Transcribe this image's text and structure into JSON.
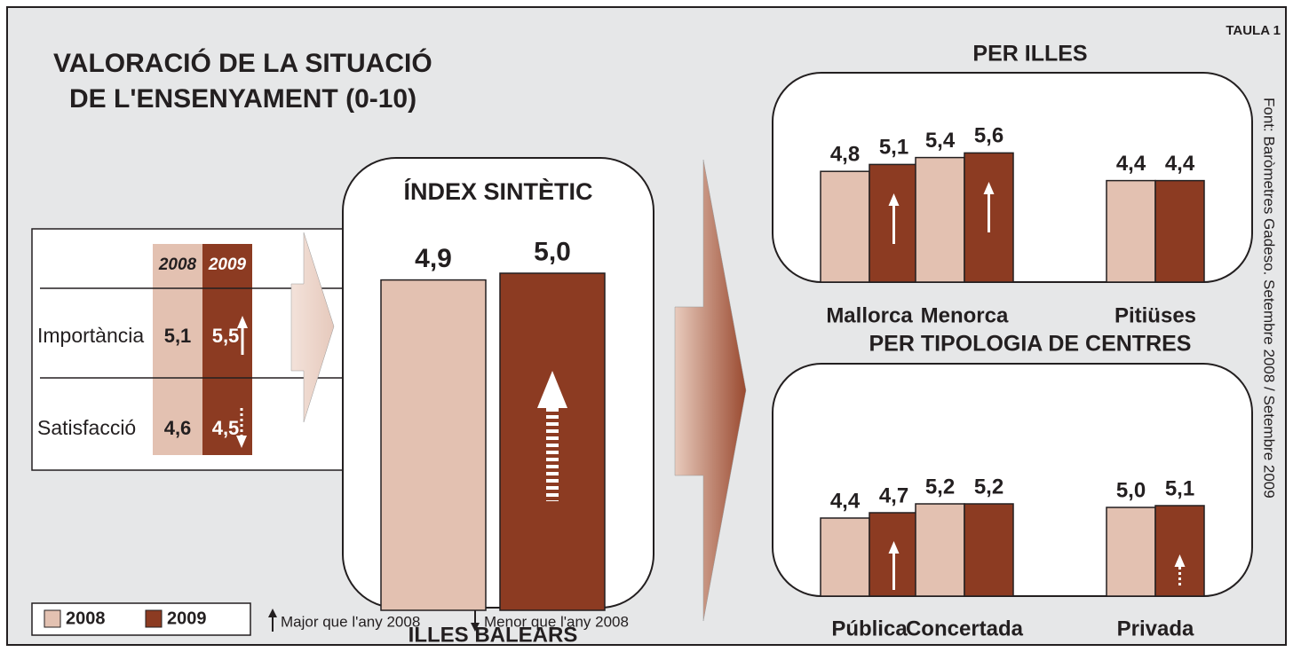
{
  "title_lines": [
    "VALORACIÓ DE LA SITUACIÓ",
    "DE L'ENSENYAMENT (0-10)"
  ],
  "tag": "TAULA 1",
  "source": "Font: Baròmetres Gadeso. Setembre 2008 / Setembre 2009",
  "table": {
    "columns": [
      "2008",
      "2009"
    ],
    "rows": [
      {
        "label": "Importància",
        "values": [
          "5,1",
          "5,5"
        ]
      },
      {
        "label": "Satisfacció",
        "values": [
          "4,6",
          "4,5"
        ]
      }
    ]
  },
  "legend": {
    "up": "Major que l'any 2008",
    "down": "Menor que l'any 2008"
  },
  "chart_data": [
    {
      "type": "bar",
      "title": "ÍNDEX SINTÈTIC",
      "categories": [
        "ILLES BALEARS"
      ],
      "series": [
        {
          "name": "2008",
          "color": "#e3c1b1",
          "values": [
            4.9
          ],
          "value_labels": [
            "4,9"
          ]
        },
        {
          "name": "2009",
          "color": "#8c3b22",
          "values": [
            5.0
          ],
          "value_labels": [
            "5,0"
          ]
        }
      ]
    },
    {
      "type": "bar",
      "title": "PER ILLES",
      "categories": [
        "Mallorca",
        "Menorca",
        "Pitiüses"
      ],
      "series": [
        {
          "name": "2008",
          "color": "#e3c1b1",
          "values": [
            4.8,
            5.4,
            4.4
          ],
          "value_labels": [
            "4,8",
            "5,4",
            "4,4"
          ]
        },
        {
          "name": "2009",
          "color": "#8c3b22",
          "values": [
            5.1,
            5.6,
            4.4
          ],
          "value_labels": [
            "5,1",
            "5,6",
            "4,4"
          ]
        }
      ]
    },
    {
      "type": "bar",
      "title": "PER TIPOLOGIA DE CENTRES",
      "categories": [
        "Pública",
        "Concertada",
        "Privada"
      ],
      "series": [
        {
          "name": "2008",
          "color": "#e3c1b1",
          "values": [
            4.4,
            5.2,
            5.0
          ],
          "value_labels": [
            "4,4",
            "5,2",
            "5,0"
          ]
        },
        {
          "name": "2009",
          "color": "#8c3b22",
          "values": [
            4.7,
            5.2,
            5.1
          ],
          "value_labels": [
            "4,7",
            "5,2",
            "5,1"
          ]
        }
      ]
    }
  ]
}
